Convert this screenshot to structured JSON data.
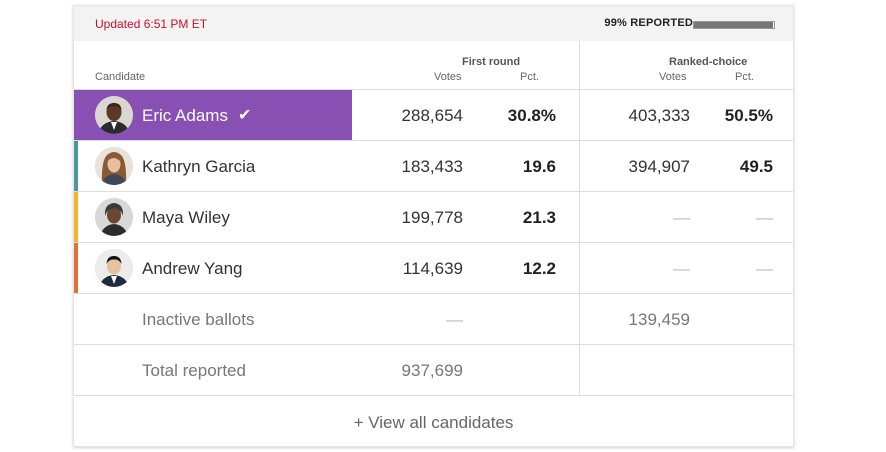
{
  "header": {
    "updated": "Updated 6:51 PM ET",
    "reported": "99% REPORTED",
    "reported_fraction": 0.99
  },
  "columns": {
    "candidate": "Candidate",
    "first_round": "First round",
    "ranked_choice": "Ranked-choice",
    "votes": "Votes",
    "pct": "Pct."
  },
  "candidates": [
    {
      "name": "Eric Adams",
      "votes1": "288,654",
      "pct1": "30.8%",
      "votes2": "403,333",
      "pct2": "50.5%",
      "color": "#8750b2",
      "winner": true,
      "winner_icon": "checkmark-icon"
    },
    {
      "name": "Kathryn Garcia",
      "votes1": "183,433",
      "pct1": "19.6",
      "votes2": "394,907",
      "pct2": "49.5",
      "color": "#4a98a6"
    },
    {
      "name": "Maya Wiley",
      "votes1": "199,778",
      "pct1": "21.3",
      "votes2": "—",
      "pct2": "—",
      "color": "#f2b42b"
    },
    {
      "name": "Andrew Yang",
      "votes1": "114,639",
      "pct1": "12.2",
      "votes2": "—",
      "pct2": "—",
      "color": "#e0713b"
    }
  ],
  "inactive": {
    "label": "Inactive ballots",
    "votes1": "—",
    "votes2": "139,459"
  },
  "total": {
    "label": "Total reported",
    "votes1": "937,699"
  },
  "footer": {
    "view_all": "+ View all candidates"
  }
}
